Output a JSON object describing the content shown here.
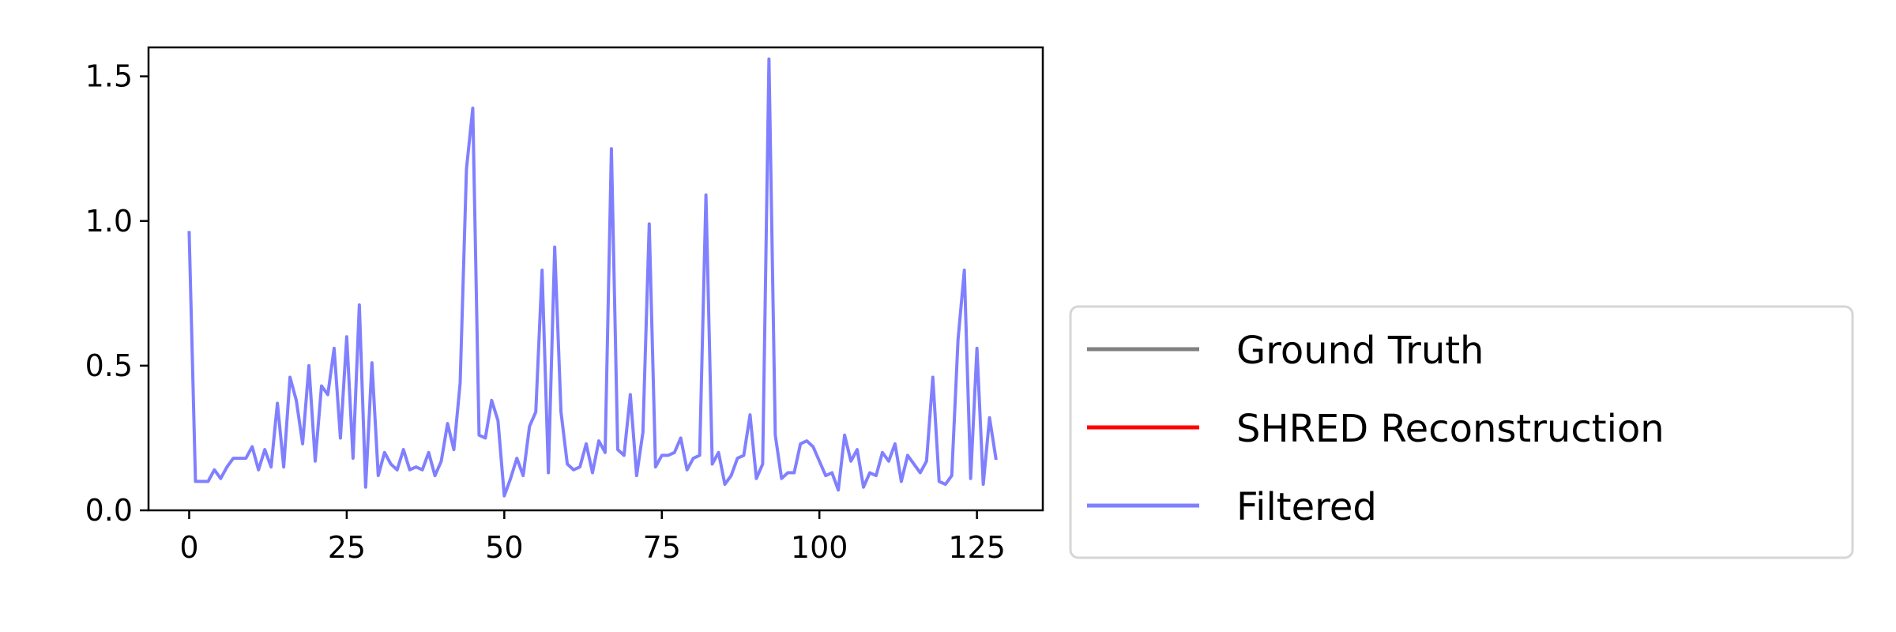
{
  "chart_data": {
    "type": "line",
    "title": "",
    "xlabel": "",
    "ylabel": "",
    "xlim": [
      -6.45,
      135.45
    ],
    "ylim": [
      0.0,
      1.6
    ],
    "xticks": [
      0,
      25,
      50,
      75,
      100,
      125
    ],
    "xtick_labels": [
      "0",
      "25",
      "50",
      "75",
      "100",
      "125"
    ],
    "yticks": [
      0.0,
      0.5,
      1.0,
      1.5
    ],
    "ytick_labels": [
      "0.0",
      "0.5",
      "1.0",
      "1.5"
    ],
    "grid": false,
    "legend_placement": "outside right, lower",
    "series": [
      {
        "name": "Ground Truth",
        "color": "#808080",
        "values": []
      },
      {
        "name": "SHRED Reconstruction",
        "color": "#ff0000",
        "values": []
      },
      {
        "name": "Filtered",
        "color": "#8080ff",
        "values": [
          0.96,
          0.1,
          0.1,
          0.1,
          0.14,
          0.11,
          0.15,
          0.18,
          0.18,
          0.18,
          0.22,
          0.14,
          0.21,
          0.15,
          0.37,
          0.15,
          0.46,
          0.38,
          0.23,
          0.5,
          0.17,
          0.43,
          0.4,
          0.56,
          0.25,
          0.6,
          0.18,
          0.71,
          0.08,
          0.51,
          0.12,
          0.2,
          0.16,
          0.14,
          0.21,
          0.14,
          0.15,
          0.14,
          0.2,
          0.12,
          0.17,
          0.3,
          0.21,
          0.44,
          1.18,
          1.39,
          0.26,
          0.25,
          0.38,
          0.31,
          0.05,
          0.11,
          0.18,
          0.12,
          0.29,
          0.34,
          0.83,
          0.13,
          0.91,
          0.34,
          0.16,
          0.14,
          0.15,
          0.23,
          0.13,
          0.24,
          0.2,
          1.25,
          0.21,
          0.19,
          0.4,
          0.12,
          0.27,
          0.99,
          0.15,
          0.19,
          0.19,
          0.2,
          0.25,
          0.14,
          0.18,
          0.19,
          1.09,
          0.16,
          0.2,
          0.09,
          0.12,
          0.18,
          0.19,
          0.33,
          0.11,
          0.16,
          1.56,
          0.26,
          0.11,
          0.13,
          0.13,
          0.23,
          0.24,
          0.22,
          0.17,
          0.12,
          0.13,
          0.07,
          0.26,
          0.17,
          0.21,
          0.08,
          0.13,
          0.12,
          0.2,
          0.17,
          0.23,
          0.1,
          0.19,
          0.16,
          0.13,
          0.17,
          0.46,
          0.1,
          0.09,
          0.12,
          0.59,
          0.83,
          0.11,
          0.56,
          0.09,
          0.32,
          0.18
        ]
      }
    ]
  }
}
